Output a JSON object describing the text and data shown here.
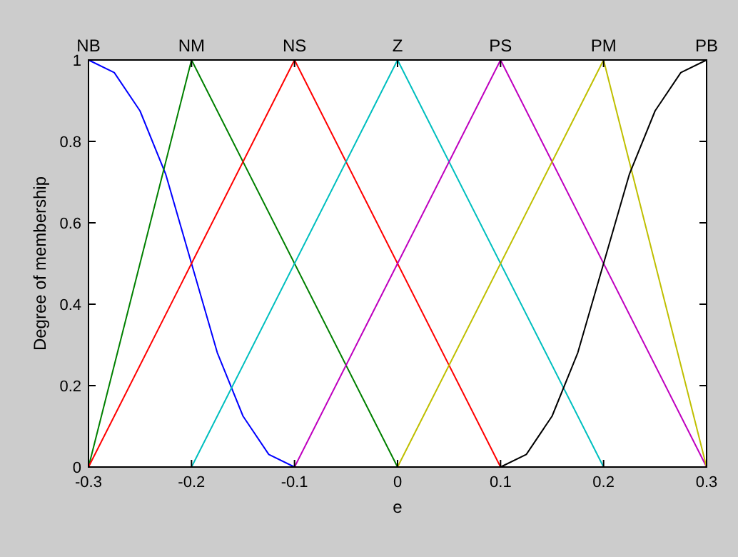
{
  "chart_data": {
    "type": "line",
    "xlabel": "e",
    "ylabel": "Degree of membership",
    "xlim": [
      -0.3,
      0.3
    ],
    "xticks": [
      -0.3,
      -0.2,
      -0.1,
      0,
      0.1,
      0.2,
      0.3
    ],
    "ylim": [
      0,
      1
    ],
    "yticks": [
      0,
      0.2,
      0.4,
      0.6,
      0.8,
      1
    ],
    "grid": false,
    "line_style": "solid",
    "series": [
      {
        "name": "NB",
        "color": "#0000ff",
        "x": [
          -0.3,
          -0.275,
          -0.25,
          -0.225,
          -0.2,
          -0.175,
          -0.15,
          -0.125,
          -0.1,
          0.3
        ],
        "values": [
          1,
          0.969,
          0.875,
          0.719,
          0.5,
          0.281,
          0.125,
          0.031,
          0,
          0
        ]
      },
      {
        "name": "NM",
        "color": "#008000",
        "x": [
          -0.3,
          -0.2,
          0,
          0.3
        ],
        "values": [
          0,
          1,
          0,
          0
        ]
      },
      {
        "name": "NS",
        "color": "#ff0000",
        "x": [
          -0.3,
          -0.1,
          0.1,
          0.3
        ],
        "values": [
          0,
          1,
          0,
          0
        ]
      },
      {
        "name": "Z",
        "color": "#00bfbf",
        "x": [
          -0.3,
          -0.2,
          0,
          0.2,
          0.3
        ],
        "values": [
          0,
          0,
          1,
          0,
          0
        ]
      },
      {
        "name": "PS",
        "color": "#bf00bf",
        "x": [
          -0.3,
          -0.1,
          0.1,
          0.3
        ],
        "values": [
          0,
          0,
          1,
          0
        ]
      },
      {
        "name": "PM",
        "color": "#bfbf00",
        "x": [
          -0.3,
          0,
          0.2,
          0.3
        ],
        "values": [
          0,
          0,
          1,
          0
        ]
      },
      {
        "name": "PB",
        "color": "#000000",
        "x": [
          -0.3,
          0.1,
          0.125,
          0.15,
          0.175,
          0.2,
          0.225,
          0.25,
          0.275,
          0.3
        ],
        "values": [
          0,
          0,
          0.031,
          0.125,
          0.281,
          0.5,
          0.719,
          0.875,
          0.969,
          1
        ]
      }
    ]
  }
}
